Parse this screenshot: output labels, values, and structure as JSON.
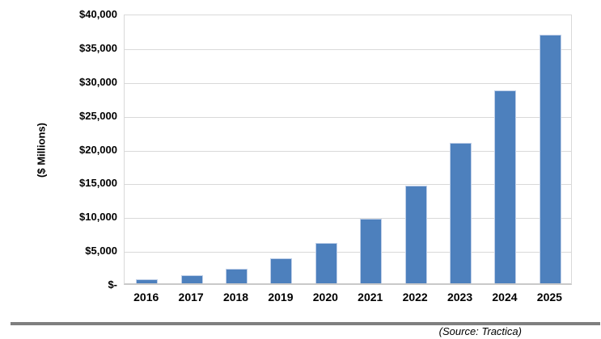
{
  "chart_data": {
    "type": "bar",
    "title": "",
    "xlabel": "",
    "ylabel": "($ Millions)",
    "categories": [
      "2016",
      "2017",
      "2018",
      "2019",
      "2020",
      "2021",
      "2022",
      "2023",
      "2024",
      "2025"
    ],
    "values": [
      600,
      1200,
      2200,
      3700,
      6000,
      9500,
      14400,
      20800,
      28500,
      36800
    ],
    "ylim": [
      0,
      40000
    ],
    "y_tick_step": 5000,
    "y_tick_labels_top_to_bottom": [
      "$40,000",
      "$35,000",
      "$30,000",
      "$25,000",
      "$20,000",
      "$15,000",
      "$10,000",
      "$5,000",
      "$-"
    ],
    "grid": true,
    "legend": false,
    "colors": {
      "bar_fill": "#4d80bd",
      "bar_edge": "#bfcfe8",
      "gridline": "#d9d9d9",
      "plot_border": "#d9d9d9",
      "axis_line": "#c9c9c9",
      "text": "#000000"
    }
  },
  "footer": {
    "source_note": "(Source: Tractica)",
    "rule_color": "#7f7f7f"
  }
}
